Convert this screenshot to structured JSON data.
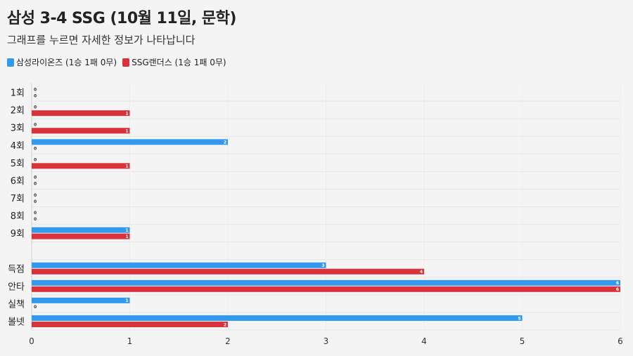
{
  "header": {
    "title": "삼성 3-4 SSG (10월 11일, 문학)",
    "subtitle": "그래프를 누르면 자세한 정보가 나타납니다"
  },
  "legend": [
    {
      "label": "삼성라이온즈 (1승 1패 0무)",
      "color": "#3399ee",
      "icon": "square"
    },
    {
      "label": "SSG랜더스 (1승 1패 0무)",
      "color": "#d9323a",
      "icon": "square"
    }
  ],
  "chart_data": {
    "type": "bar",
    "orientation": "horizontal",
    "title": "삼성 3-4 SSG (10월 11일, 문학)",
    "categories": [
      "1회",
      "2회",
      "3회",
      "4회",
      "5회",
      "6회",
      "7회",
      "8회",
      "9회",
      "",
      "득점",
      "안타",
      "실책",
      "볼넷"
    ],
    "series": [
      {
        "name": "삼성라이온즈 (1승 1패 0무)",
        "color": "#3399ee",
        "values": [
          0,
          0,
          0,
          2,
          0,
          0,
          0,
          0,
          1,
          null,
          3,
          6,
          1,
          5
        ]
      },
      {
        "name": "SSG랜더스 (1승 1패 0무)",
        "color": "#d9323a",
        "values": [
          0,
          1,
          1,
          0,
          1,
          0,
          0,
          0,
          1,
          null,
          4,
          6,
          0,
          2
        ]
      }
    ],
    "xlim": [
      0,
      6
    ],
    "xticks": [
      "0",
      "1",
      "2",
      "3",
      "4",
      "5",
      "6"
    ],
    "grid": true,
    "legend_position": "top-left"
  }
}
